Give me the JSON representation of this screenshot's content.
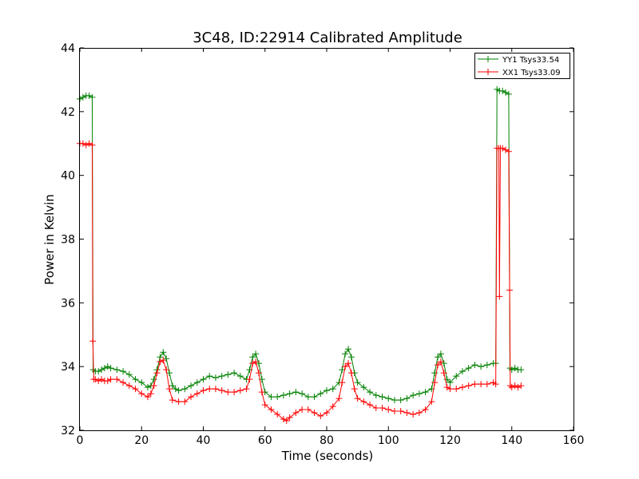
{
  "chart_data": {
    "type": "line",
    "title": "3C48, ID:22914 Calibrated Amplitude",
    "xlabel": "Time (seconds)",
    "ylabel": "Power in Kelvin",
    "xlim": [
      0,
      160
    ],
    "ylim": [
      32,
      44
    ],
    "xticks": [
      "0",
      "20",
      "40",
      "60",
      "80",
      "100",
      "120",
      "140",
      "160"
    ],
    "yticks": [
      "32",
      "34",
      "36",
      "38",
      "40",
      "42",
      "44"
    ],
    "grid": false,
    "legend_position": "top-right",
    "marker": "+",
    "series": [
      {
        "name": "YY1 Tsys33.54",
        "color": "#008000",
        "points": [
          [
            0,
            42.4
          ],
          [
            1,
            42.45
          ],
          [
            2,
            42.5
          ],
          [
            3,
            42.5
          ],
          [
            4,
            42.45
          ],
          [
            4.3,
            33.9
          ],
          [
            5,
            33.85
          ],
          [
            6,
            33.85
          ],
          [
            7,
            33.9
          ],
          [
            8,
            33.95
          ],
          [
            9,
            34.0
          ],
          [
            10,
            33.95
          ],
          [
            12,
            33.9
          ],
          [
            14,
            33.85
          ],
          [
            16,
            33.75
          ],
          [
            18,
            33.6
          ],
          [
            20,
            33.5
          ],
          [
            22,
            33.35
          ],
          [
            23,
            33.4
          ],
          [
            24,
            33.6
          ],
          [
            25,
            33.9
          ],
          [
            26,
            34.3
          ],
          [
            27,
            34.45
          ],
          [
            28,
            34.25
          ],
          [
            29,
            33.8
          ],
          [
            30,
            33.4
          ],
          [
            31,
            33.3
          ],
          [
            32,
            33.25
          ],
          [
            34,
            33.3
          ],
          [
            36,
            33.4
          ],
          [
            38,
            33.5
          ],
          [
            40,
            33.6
          ],
          [
            42,
            33.7
          ],
          [
            44,
            33.65
          ],
          [
            46,
            33.7
          ],
          [
            48,
            33.75
          ],
          [
            50,
            33.8
          ],
          [
            52,
            33.7
          ],
          [
            54,
            33.6
          ],
          [
            55,
            33.9
          ],
          [
            56,
            34.3
          ],
          [
            57,
            34.4
          ],
          [
            58,
            34.1
          ],
          [
            59,
            33.6
          ],
          [
            60,
            33.2
          ],
          [
            62,
            33.05
          ],
          [
            64,
            33.05
          ],
          [
            66,
            33.1
          ],
          [
            68,
            33.15
          ],
          [
            70,
            33.2
          ],
          [
            72,
            33.15
          ],
          [
            74,
            33.05
          ],
          [
            76,
            33.05
          ],
          [
            78,
            33.15
          ],
          [
            80,
            33.25
          ],
          [
            82,
            33.3
          ],
          [
            84,
            33.5
          ],
          [
            85,
            33.9
          ],
          [
            86,
            34.4
          ],
          [
            87,
            34.55
          ],
          [
            88,
            34.3
          ],
          [
            89,
            33.8
          ],
          [
            90,
            33.5
          ],
          [
            92,
            33.35
          ],
          [
            94,
            33.2
          ],
          [
            96,
            33.1
          ],
          [
            98,
            33.05
          ],
          [
            100,
            33.0
          ],
          [
            102,
            32.95
          ],
          [
            104,
            32.95
          ],
          [
            106,
            33.0
          ],
          [
            108,
            33.1
          ],
          [
            110,
            33.15
          ],
          [
            112,
            33.2
          ],
          [
            114,
            33.3
          ],
          [
            115,
            33.8
          ],
          [
            116,
            34.3
          ],
          [
            117,
            34.4
          ],
          [
            118,
            34.1
          ],
          [
            119,
            33.6
          ],
          [
            120,
            33.5
          ],
          [
            122,
            33.7
          ],
          [
            124,
            33.85
          ],
          [
            126,
            33.95
          ],
          [
            128,
            34.05
          ],
          [
            130,
            34.0
          ],
          [
            132,
            34.05
          ],
          [
            134,
            34.1
          ],
          [
            134.8,
            34.1
          ],
          [
            135.2,
            42.7
          ],
          [
            136,
            42.65
          ],
          [
            137,
            42.65
          ],
          [
            138,
            42.6
          ],
          [
            139,
            42.55
          ],
          [
            139.4,
            33.95
          ],
          [
            140,
            33.9
          ],
          [
            141,
            33.95
          ],
          [
            142,
            33.9
          ],
          [
            143,
            33.9
          ]
        ]
      },
      {
        "name": "XX1 Tsys33.09",
        "color": "#ff0000",
        "points": [
          [
            0,
            41.0
          ],
          [
            1,
            41.0
          ],
          [
            2,
            40.95
          ],
          [
            3,
            41.0
          ],
          [
            4,
            40.95
          ],
          [
            4.2,
            34.8
          ],
          [
            4.5,
            33.6
          ],
          [
            5,
            33.6
          ],
          [
            6,
            33.55
          ],
          [
            7,
            33.6
          ],
          [
            8,
            33.55
          ],
          [
            9,
            33.55
          ],
          [
            10,
            33.6
          ],
          [
            12,
            33.6
          ],
          [
            14,
            33.5
          ],
          [
            16,
            33.4
          ],
          [
            18,
            33.3
          ],
          [
            20,
            33.15
          ],
          [
            22,
            33.05
          ],
          [
            23,
            33.15
          ],
          [
            24,
            33.4
          ],
          [
            25,
            33.8
          ],
          [
            26,
            34.15
          ],
          [
            27,
            34.2
          ],
          [
            28,
            33.9
          ],
          [
            29,
            33.3
          ],
          [
            30,
            32.95
          ],
          [
            32,
            32.9
          ],
          [
            34,
            32.9
          ],
          [
            36,
            33.05
          ],
          [
            38,
            33.15
          ],
          [
            40,
            33.25
          ],
          [
            42,
            33.3
          ],
          [
            44,
            33.3
          ],
          [
            46,
            33.25
          ],
          [
            48,
            33.2
          ],
          [
            50,
            33.2
          ],
          [
            52,
            33.25
          ],
          [
            54,
            33.3
          ],
          [
            55,
            33.6
          ],
          [
            56,
            34.1
          ],
          [
            57,
            34.15
          ],
          [
            58,
            33.8
          ],
          [
            59,
            33.2
          ],
          [
            60,
            32.8
          ],
          [
            62,
            32.65
          ],
          [
            64,
            32.5
          ],
          [
            66,
            32.35
          ],
          [
            67,
            32.3
          ],
          [
            68,
            32.4
          ],
          [
            70,
            32.55
          ],
          [
            72,
            32.65
          ],
          [
            74,
            32.65
          ],
          [
            76,
            32.55
          ],
          [
            78,
            32.45
          ],
          [
            80,
            32.55
          ],
          [
            82,
            32.75
          ],
          [
            84,
            33.0
          ],
          [
            85,
            33.5
          ],
          [
            86,
            34.0
          ],
          [
            87,
            34.1
          ],
          [
            88,
            33.8
          ],
          [
            89,
            33.3
          ],
          [
            90,
            33.0
          ],
          [
            92,
            32.9
          ],
          [
            94,
            32.8
          ],
          [
            96,
            32.7
          ],
          [
            98,
            32.7
          ],
          [
            100,
            32.65
          ],
          [
            102,
            32.6
          ],
          [
            104,
            32.6
          ],
          [
            106,
            32.55
          ],
          [
            108,
            32.5
          ],
          [
            110,
            32.55
          ],
          [
            112,
            32.65
          ],
          [
            114,
            32.9
          ],
          [
            115,
            33.5
          ],
          [
            116,
            34.05
          ],
          [
            117,
            34.15
          ],
          [
            118,
            33.8
          ],
          [
            119,
            33.35
          ],
          [
            120,
            33.3
          ],
          [
            122,
            33.3
          ],
          [
            124,
            33.35
          ],
          [
            126,
            33.4
          ],
          [
            128,
            33.45
          ],
          [
            130,
            33.45
          ],
          [
            132,
            33.45
          ],
          [
            134,
            33.5
          ],
          [
            134.8,
            33.45
          ],
          [
            135.2,
            40.85
          ],
          [
            135.8,
            40.85
          ],
          [
            136.0,
            36.2
          ],
          [
            136.3,
            40.85
          ],
          [
            137,
            40.85
          ],
          [
            138,
            40.8
          ],
          [
            139,
            40.75
          ],
          [
            139.3,
            36.4
          ],
          [
            139.5,
            33.4
          ],
          [
            140,
            33.35
          ],
          [
            141,
            33.4
          ],
          [
            142,
            33.35
          ],
          [
            143,
            33.4
          ]
        ]
      }
    ]
  }
}
